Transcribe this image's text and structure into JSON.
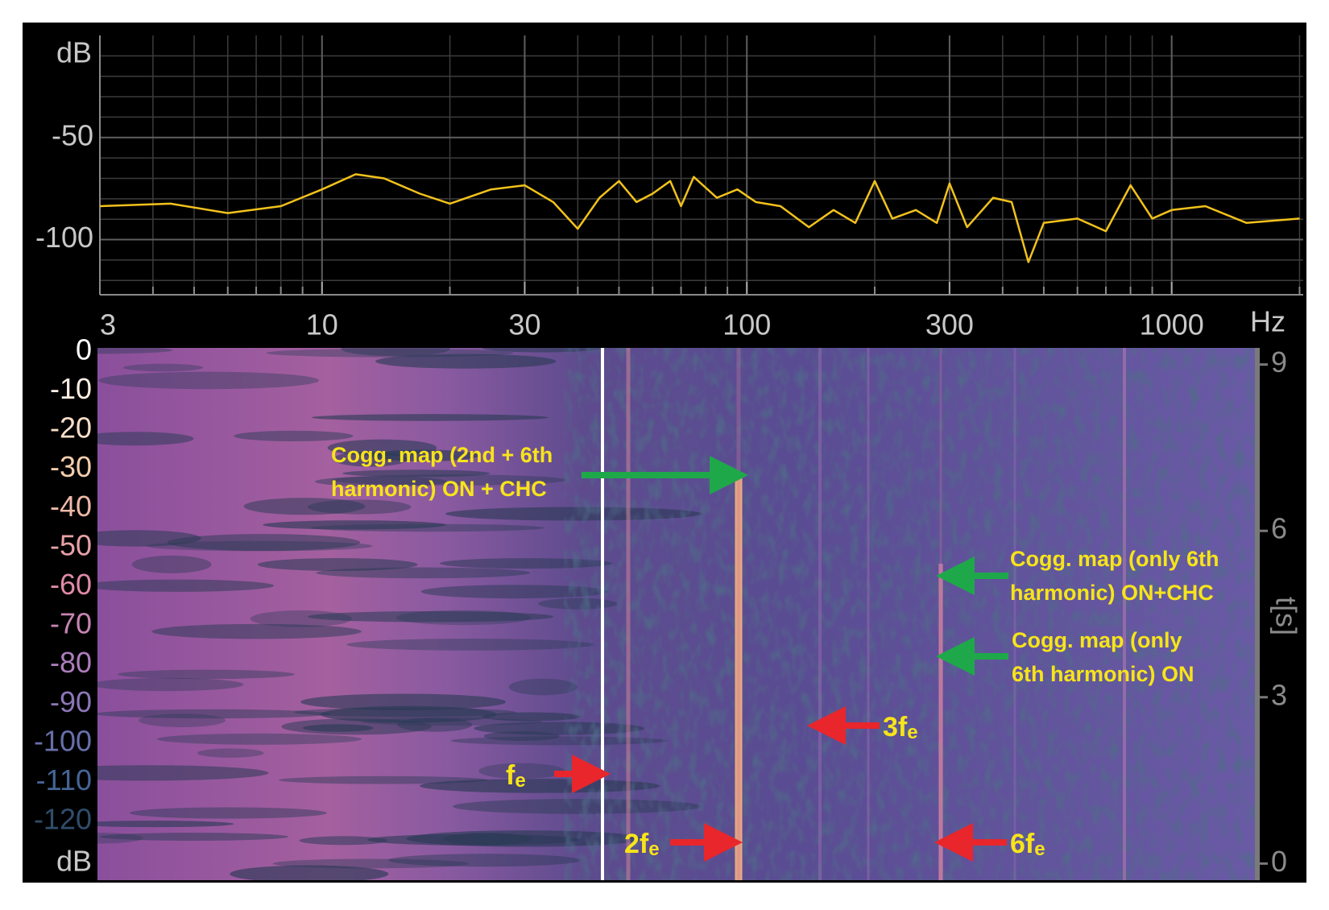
{
  "chart_data": {
    "type": "line",
    "xlabel": "Hz",
    "ylabel": "dB",
    "log_x": true,
    "grid": true,
    "xlim": [
      3,
      2040
    ],
    "ylim": [
      -127,
      0
    ],
    "xticks": [
      3,
      10,
      30,
      100,
      300,
      1000
    ],
    "xgrid": [
      4,
      5,
      6,
      7,
      8,
      9,
      20,
      40,
      50,
      60,
      70,
      80,
      90,
      200,
      400,
      500,
      600,
      700,
      800,
      900,
      2000
    ],
    "yticks": [
      -50,
      -100
    ],
    "ygrid": [
      -10,
      -20,
      -30,
      -40,
      -60,
      -70,
      -80,
      -90,
      -110,
      -120
    ],
    "x": [
      3,
      4.4,
      6,
      8,
      10,
      12,
      14,
      17,
      20,
      25,
      30,
      35,
      40,
      45,
      50,
      55,
      60,
      66,
      70,
      75,
      85,
      95,
      105,
      120,
      140,
      160,
      180,
      200,
      220,
      250,
      280,
      300,
      330,
      380,
      420,
      460,
      500,
      600,
      700,
      800,
      900,
      1000,
      1200,
      1500,
      2000
    ],
    "series": [
      {
        "color": "#f2c21b",
        "values": [
          -83.6,
          -82.4,
          -87,
          -83.6,
          -75.4,
          -68,
          -70,
          -77.5,
          -82.4,
          -75.4,
          -73.4,
          -81.6,
          -94.7,
          -79.5,
          -71.3,
          -81.6,
          -77.5,
          -71.3,
          -83.6,
          -69.3,
          -79.5,
          -75.4,
          -81.6,
          -83.6,
          -93.9,
          -85.5,
          -91.8,
          -71.3,
          -89.7,
          -85.5,
          -91.8,
          -72.5,
          -93.9,
          -79.5,
          -81.6,
          -111,
          -91.8,
          -89.7,
          -95.9,
          -73.4,
          -89.7,
          -85.5,
          -83.6,
          -91.8,
          -89.7
        ]
      }
    ]
  },
  "spectrogram": {
    "color_scale": {
      "lim": [
        1,
        -135
      ],
      "ticks": [
        0,
        -10,
        -20,
        -30,
        -40,
        -50,
        -60,
        -70,
        -80,
        -90,
        -100,
        -110,
        -120
      ],
      "unit": "dB"
    },
    "time_axis": {
      "label": "t[s]",
      "lim": [
        -0.3,
        9.3
      ],
      "ticks": [
        9,
        6,
        3,
        0
      ]
    },
    "annotations": [
      {
        "lines": [
          "Cogg. map (2nd + 6th",
          "harmonic) ON + CHC"
        ],
        "arrow": "green"
      },
      {
        "lines": [
          "Cogg. map (only 6th",
          "harmonic) ON+CHC"
        ],
        "arrow": "green"
      },
      {
        "lines": [
          "Cogg. map (only",
          "6th harmonic) ON"
        ],
        "arrow": "green"
      }
    ],
    "harmonics": [
      {
        "base": "f",
        "subscript": "e",
        "arrow": "red"
      },
      {
        "base": "2f",
        "subscript": "e",
        "arrow": "red"
      },
      {
        "base": "3f",
        "subscript": "e",
        "arrow": "red"
      },
      {
        "base": "6f",
        "subscript": "e",
        "arrow": "red"
      }
    ]
  }
}
